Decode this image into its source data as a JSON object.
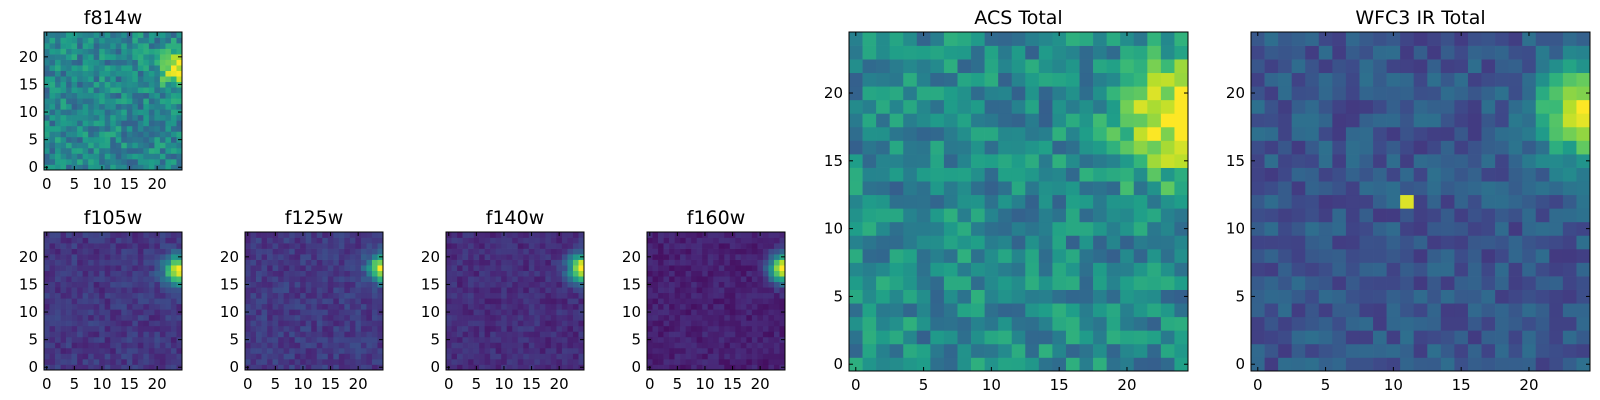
{
  "figure": {
    "colormap": "viridis",
    "colormap_stops": [
      "#440154",
      "#482878",
      "#3e4989",
      "#31688e",
      "#26828e",
      "#1f9e89",
      "#35b779",
      "#6ece58",
      "#b5de2b",
      "#fde725"
    ]
  },
  "chart_data": [
    {
      "type": "heatmap",
      "title": "f814w",
      "grid_size": 25,
      "xlim": [
        -0.5,
        24.5
      ],
      "ylim": [
        -0.5,
        24.5
      ],
      "xticks": [
        0,
        5,
        10,
        15,
        20
      ],
      "yticks": [
        0,
        5,
        10,
        15,
        20
      ],
      "value_range": [
        0,
        1
      ],
      "background_level": 0.46,
      "noise_amplitude": 0.16,
      "sources": [
        {
          "x": 24,
          "y": 18,
          "amplitude": 0.56,
          "sigma": 2.3
        }
      ]
    },
    {
      "type": "heatmap",
      "title": "f105w",
      "grid_size": 25,
      "xlim": [
        -0.5,
        24.5
      ],
      "ylim": [
        -0.5,
        24.5
      ],
      "xticks": [
        0,
        5,
        10,
        15,
        20
      ],
      "yticks": [
        0,
        5,
        10,
        15,
        20
      ],
      "value_range": [
        0,
        1
      ],
      "background_level": 0.16,
      "noise_amplitude": 0.07,
      "sources": [
        {
          "x": 24,
          "y": 17.5,
          "amplitude": 0.82,
          "sigma": 1.9
        }
      ]
    },
    {
      "type": "heatmap",
      "title": "f125w",
      "grid_size": 25,
      "xlim": [
        -0.5,
        24.5
      ],
      "ylim": [
        -0.5,
        24.5
      ],
      "xticks": [
        0,
        5,
        10,
        15,
        20
      ],
      "yticks": [
        0,
        5,
        10,
        15,
        20
      ],
      "value_range": [
        0,
        1
      ],
      "background_level": 0.17,
      "noise_amplitude": 0.07,
      "sources": [
        {
          "x": 24.3,
          "y": 18,
          "amplitude": 0.83,
          "sigma": 1.7
        }
      ]
    },
    {
      "type": "heatmap",
      "title": "f140w",
      "grid_size": 25,
      "xlim": [
        -0.5,
        24.5
      ],
      "ylim": [
        -0.5,
        24.5
      ],
      "xticks": [
        0,
        5,
        10,
        15,
        20
      ],
      "yticks": [
        0,
        5,
        10,
        15,
        20
      ],
      "value_range": [
        0,
        1
      ],
      "background_level": 0.13,
      "noise_amplitude": 0.06,
      "sources": [
        {
          "x": 24.3,
          "y": 18,
          "amplitude": 0.88,
          "sigma": 1.8
        }
      ]
    },
    {
      "type": "heatmap",
      "title": "f160w",
      "grid_size": 25,
      "xlim": [
        -0.5,
        24.5
      ],
      "ylim": [
        -0.5,
        24.5
      ],
      "xticks": [
        0,
        5,
        10,
        15,
        20
      ],
      "yticks": [
        0,
        5,
        10,
        15,
        20
      ],
      "value_range": [
        0,
        1
      ],
      "background_level": 0.09,
      "noise_amplitude": 0.05,
      "sources": [
        {
          "x": 24.3,
          "y": 18,
          "amplitude": 0.92,
          "sigma": 1.8
        }
      ]
    },
    {
      "type": "heatmap",
      "title": "ACS Total",
      "grid_size": 25,
      "xlim": [
        -0.5,
        24.5
      ],
      "ylim": [
        -0.5,
        24.5
      ],
      "xticks": [
        0,
        5,
        10,
        15,
        20
      ],
      "yticks": [
        0,
        5,
        10,
        15,
        20
      ],
      "value_range": [
        0,
        1
      ],
      "background_level": 0.47,
      "noise_amplitude": 0.17,
      "sources": [
        {
          "x": 24,
          "y": 18,
          "amplitude": 0.55,
          "sigma": 3.0
        }
      ]
    },
    {
      "type": "heatmap",
      "title": "WFC3 IR Total",
      "grid_size": 25,
      "xlim": [
        -0.5,
        24.5
      ],
      "ylim": [
        -0.5,
        24.5
      ],
      "xticks": [
        0,
        5,
        10,
        15,
        20
      ],
      "yticks": [
        0,
        5,
        10,
        15,
        20
      ],
      "value_range": [
        0,
        1
      ],
      "background_level": 0.27,
      "noise_amplitude": 0.1,
      "sources": [
        {
          "x": 24,
          "y": 18.5,
          "amplitude": 0.7,
          "sigma": 2.4
        },
        {
          "x": 11,
          "y": 12,
          "amplitude": 0.65,
          "sigma": 0.35
        }
      ]
    }
  ]
}
